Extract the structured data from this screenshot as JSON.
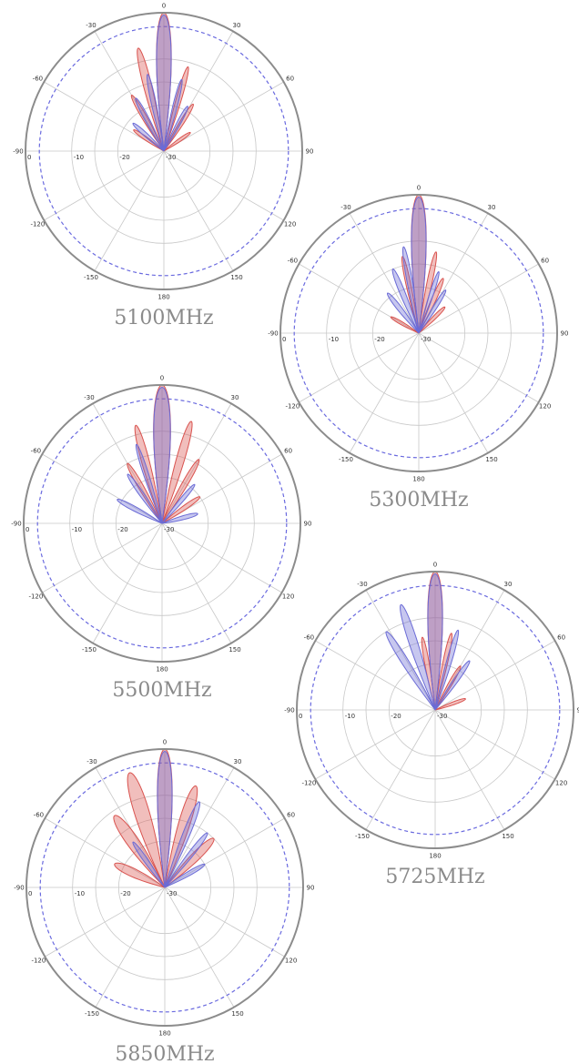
{
  "chart_data": [
    {
      "type": "polar",
      "title": "5100MHz",
      "angle_ticks": [
        "0",
        "30",
        "60",
        "90",
        "120",
        "150",
        "180",
        "-150",
        "-120",
        "-90",
        "-60",
        "-30"
      ],
      "radial_ticks": [
        "0",
        "-10",
        "-20",
        "-30"
      ],
      "radial_range": [
        -30,
        0
      ],
      "reference_level_db": -3,
      "series": [
        {
          "color": "#d9534f",
          "lobes": [
            {
              "angle": 0,
              "value": 0,
              "width": 7
            },
            {
              "angle": -14,
              "value": -7,
              "width": 5
            },
            {
              "angle": 16,
              "value": -11,
              "width": 4
            },
            {
              "angle": -30,
              "value": -16,
              "width": 5
            },
            {
              "angle": 32,
              "value": -18,
              "width": 5
            },
            {
              "angle": 55,
              "value": -23,
              "width": 6
            },
            {
              "angle": -55,
              "value": -22,
              "width": 6
            }
          ]
        },
        {
          "color": "#6b6bd6",
          "lobes": [
            {
              "angle": 0,
              "value": -0.5,
              "width": 7
            },
            {
              "angle": -12,
              "value": -13,
              "width": 4
            },
            {
              "angle": 14,
              "value": -14,
              "width": 4
            },
            {
              "angle": -28,
              "value": -17,
              "width": 5
            },
            {
              "angle": 28,
              "value": -19,
              "width": 5
            },
            {
              "angle": -48,
              "value": -21,
              "width": 6
            }
          ]
        }
      ]
    },
    {
      "type": "polar",
      "title": "5300MHz",
      "angle_ticks": [
        "0",
        "30",
        "60",
        "90",
        "120",
        "150",
        "180",
        "-150",
        "-120",
        "-90",
        "-60",
        "-30"
      ],
      "radial_ticks": [
        "0",
        "-10",
        "-20",
        "-30"
      ],
      "radial_range": [
        -30,
        0
      ],
      "reference_level_db": -3,
      "series": [
        {
          "color": "#d9534f",
          "lobes": [
            {
              "angle": 0,
              "value": 0,
              "width": 7
            },
            {
              "angle": 12,
              "value": -12,
              "width": 4
            },
            {
              "angle": -12,
              "value": -13,
              "width": 4
            },
            {
              "angle": 24,
              "value": -17,
              "width": 5
            },
            {
              "angle": 45,
              "value": -22,
              "width": 6
            },
            {
              "angle": -60,
              "value": -23,
              "width": 6
            }
          ]
        },
        {
          "color": "#6b6bd6",
          "lobes": [
            {
              "angle": 0,
              "value": -0.5,
              "width": 7
            },
            {
              "angle": -10,
              "value": -11,
              "width": 4
            },
            {
              "angle": -22,
              "value": -15,
              "width": 5
            },
            {
              "angle": -38,
              "value": -19,
              "width": 6
            },
            {
              "angle": 18,
              "value": -16,
              "width": 4
            },
            {
              "angle": 32,
              "value": -19,
              "width": 5
            }
          ]
        }
      ]
    },
    {
      "type": "polar",
      "title": "5500MHz",
      "angle_ticks": [
        "0",
        "30",
        "60",
        "90",
        "120",
        "150",
        "180",
        "-150",
        "-120",
        "-90",
        "-60",
        "-30"
      ],
      "radial_ticks": [
        "0",
        "-10",
        "-20",
        "-30"
      ],
      "radial_range": [
        -30,
        0
      ],
      "reference_level_db": -3,
      "series": [
        {
          "color": "#d9534f",
          "lobes": [
            {
              "angle": 0,
              "value": 0,
              "width": 8
            },
            {
              "angle": -15,
              "value": -8,
              "width": 5
            },
            {
              "angle": 16,
              "value": -7,
              "width": 5
            },
            {
              "angle": 30,
              "value": -14,
              "width": 5
            },
            {
              "angle": -30,
              "value": -15,
              "width": 5
            },
            {
              "angle": 55,
              "value": -20,
              "width": 6
            }
          ]
        },
        {
          "color": "#6b6bd6",
          "lobes": [
            {
              "angle": 0,
              "value": -0.5,
              "width": 8
            },
            {
              "angle": -18,
              "value": -12,
              "width": 4
            },
            {
              "angle": -35,
              "value": -17,
              "width": 5
            },
            {
              "angle": -62,
              "value": -19,
              "width": 6
            },
            {
              "angle": 40,
              "value": -19,
              "width": 5
            },
            {
              "angle": 75,
              "value": -22,
              "width": 7
            }
          ]
        }
      ]
    },
    {
      "type": "polar",
      "title": "5725MHz",
      "angle_ticks": [
        "0",
        "30",
        "60",
        "90",
        "120",
        "150",
        "180",
        "-150",
        "-120",
        "-90",
        "-60",
        "-30"
      ],
      "radial_ticks": [
        "0",
        "-10",
        "-20",
        "-30"
      ],
      "radial_range": [
        -30,
        0
      ],
      "reference_level_db": -3,
      "series": [
        {
          "color": "#d9534f",
          "lobes": [
            {
              "angle": 0,
              "value": 0,
              "width": 7
            },
            {
              "angle": 12,
              "value": -13,
              "width": 4
            },
            {
              "angle": -10,
              "value": -14,
              "width": 4
            },
            {
              "angle": 30,
              "value": -19,
              "width": 5
            },
            {
              "angle": 70,
              "value": -23,
              "width": 6
            }
          ]
        },
        {
          "color": "#6b6bd6",
          "lobes": [
            {
              "angle": 0,
              "value": -0.5,
              "width": 7
            },
            {
              "angle": -18,
              "value": -6,
              "width": 5
            },
            {
              "angle": -32,
              "value": -10,
              "width": 5
            },
            {
              "angle": 16,
              "value": -12,
              "width": 4
            },
            {
              "angle": 35,
              "value": -17,
              "width": 5
            }
          ]
        }
      ]
    },
    {
      "type": "polar",
      "title": "5850MHz",
      "angle_ticks": [
        "0",
        "30",
        "60",
        "90",
        "120",
        "150",
        "180",
        "-150",
        "-120",
        "-90",
        "-60",
        "-30"
      ],
      "radial_ticks": [
        "0",
        "-10",
        "-20",
        "-30"
      ],
      "radial_range": [
        -30,
        0
      ],
      "reference_level_db": -3,
      "series": [
        {
          "color": "#d9534f",
          "lobes": [
            {
              "angle": 0,
              "value": 0,
              "width": 7
            },
            {
              "angle": -17,
              "value": -4,
              "width": 8
            },
            {
              "angle": 17,
              "value": -7,
              "width": 7
            },
            {
              "angle": -35,
              "value": -11,
              "width": 9
            },
            {
              "angle": 45,
              "value": -15,
              "width": 8
            },
            {
              "angle": -65,
              "value": -18,
              "width": 10
            }
          ]
        },
        {
          "color": "#6b6bd6",
          "lobes": [
            {
              "angle": 0,
              "value": -0.5,
              "width": 7
            },
            {
              "angle": 22,
              "value": -10,
              "width": 5
            },
            {
              "angle": 38,
              "value": -15,
              "width": 5
            },
            {
              "angle": -35,
              "value": -18,
              "width": 5
            },
            {
              "angle": 60,
              "value": -20,
              "width": 6
            }
          ]
        }
      ]
    }
  ]
}
